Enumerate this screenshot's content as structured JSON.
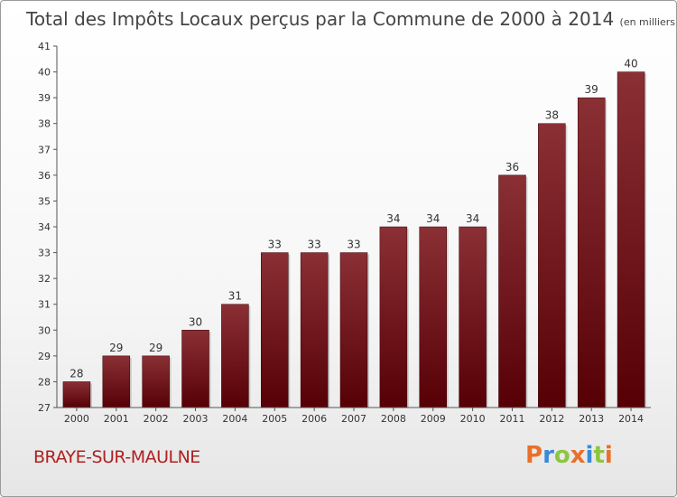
{
  "chart_data": {
    "type": "bar",
    "title": "Total des Impôts Locaux perçus par la Commune de 2000 à 2014",
    "subtitle": "(en milliers d'€)",
    "categories": [
      "2000",
      "2001",
      "2002",
      "2003",
      "2004",
      "2005",
      "2006",
      "2007",
      "2008",
      "2009",
      "2010",
      "2011",
      "2012",
      "2013",
      "2014"
    ],
    "values": [
      28,
      29,
      29,
      30,
      31,
      33,
      33,
      33,
      34,
      34,
      34,
      36,
      38,
      39,
      40
    ],
    "ylim": [
      27,
      41
    ],
    "yticks": [
      27,
      28,
      29,
      30,
      31,
      32,
      33,
      34,
      35,
      36,
      37,
      38,
      39,
      40,
      41
    ],
    "xlabel": "",
    "ylabel": "",
    "grid": false,
    "bar_color_light": "#8a3035",
    "bar_color_dark": "#560006"
  },
  "footer": {
    "commune": "BRAYE-SUR-MAULNE",
    "brand_letters": [
      "P",
      "r",
      "o",
      "x",
      "i",
      "t",
      "i"
    ],
    "brand_colors": [
      "#e8702a",
      "#3a8ad6",
      "#8cc63f",
      "#e8702a",
      "#3a8ad6",
      "#8cc63f",
      "#e8702a"
    ]
  }
}
